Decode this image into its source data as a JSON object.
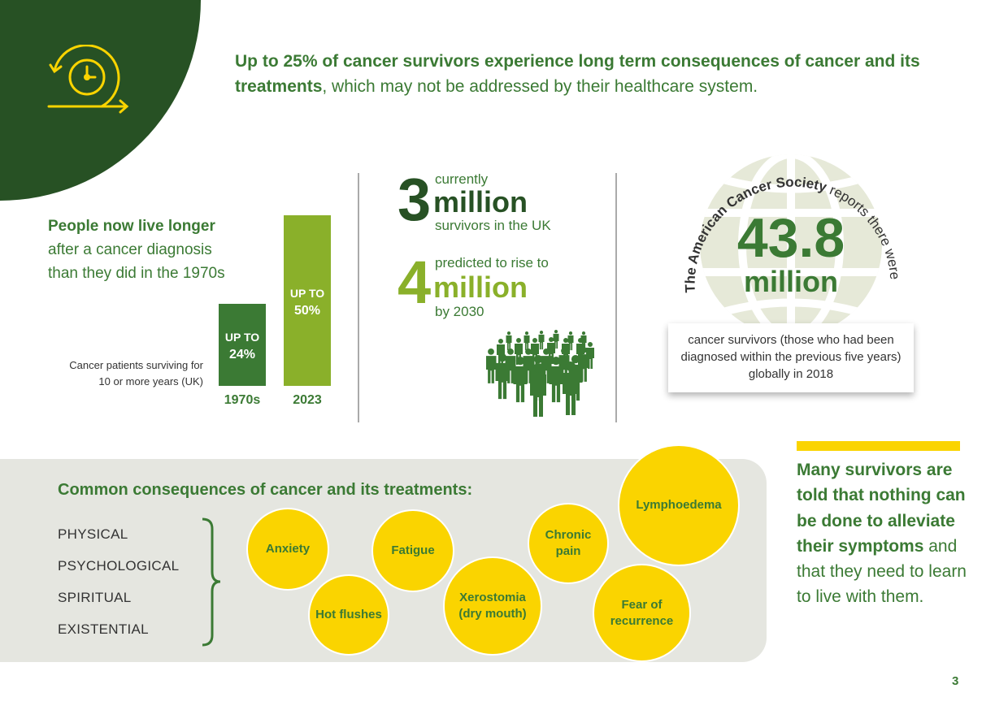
{
  "colors": {
    "dark_green": "#275124",
    "green": "#3b7a34",
    "light_green": "#8ab02a",
    "yellow": "#fad400",
    "panel": "#e5e6e0"
  },
  "icons": {
    "corner": "clock-cycle-arrow-icon",
    "people": "crowd-people-icon",
    "globe": "globe-icon"
  },
  "headline": {
    "bold": "Up to 25% of cancer survivors experience long term consequences of cancer and its treatments",
    "rest": ", which may not be addressed by their healthcare system."
  },
  "longer": {
    "bold": "People now live longer",
    "line2": "after a cancer diagnosis",
    "line3": "than they did in the 1970s"
  },
  "bars": {
    "caption_1": "Cancer patients surviving for",
    "caption_2": "10 or more years (UK)",
    "items": [
      {
        "year": "1970s",
        "label": "UP TO",
        "pct": "24%",
        "value": 24
      },
      {
        "year": "2023",
        "label": "UP TO",
        "pct": "50%",
        "value": 50
      }
    ]
  },
  "uk": {
    "now_num": "3",
    "now_pre": "currently",
    "now_mil": "million",
    "now_post": "survivors in the UK",
    "future_num": "4",
    "future_pre": "predicted to rise to",
    "future_mil": "million",
    "future_post": "by 2030"
  },
  "global": {
    "arc_bold": "The American Cancer Society",
    "arc_rest": " reports there were",
    "number": "43.8",
    "unit": "million",
    "box": "cancer survivors (those who had been diagnosed within the previous five years) globally in 2018"
  },
  "consequences": {
    "title": "Common consequences of cancer and its treatments:",
    "categories": [
      "PHYSICAL",
      "PSYCHOLOGICAL",
      "SPIRITUAL",
      "EXISTENTIAL"
    ],
    "bubbles": [
      "Anxiety",
      "Hot flushes",
      "Fatigue",
      "Xerostomia (dry mouth)",
      "Chronic pain",
      "Lymphoedema",
      "Fear of recurrence"
    ]
  },
  "many": {
    "bold": "Many survivors are told that nothing can be done to alleviate their symptoms",
    "rest": " and that they need to learn to live with them."
  },
  "page_number": "3"
}
